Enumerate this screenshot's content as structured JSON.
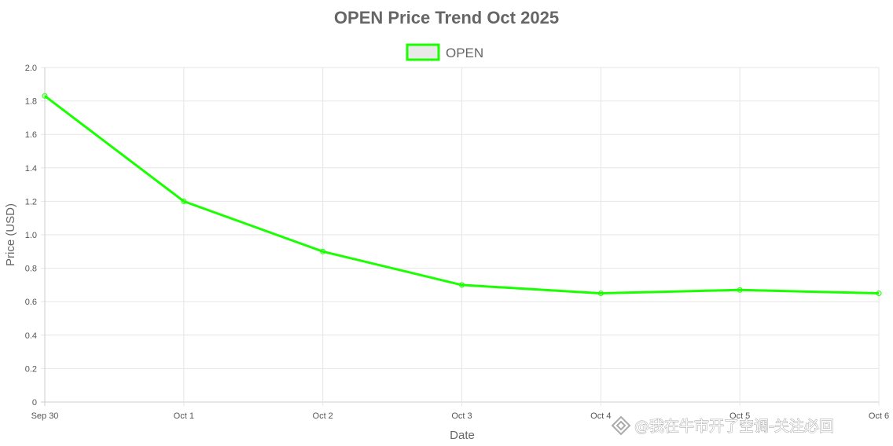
{
  "chart_data": {
    "type": "line",
    "title": "OPEN Price Trend Oct 2025",
    "xlabel": "Date",
    "ylabel": "Price (USD)",
    "categories": [
      "Sep 30",
      "Oct 1",
      "Oct 2",
      "Oct 3",
      "Oct 4",
      "Oct 5",
      "Oct 6"
    ],
    "series": [
      {
        "name": "OPEN",
        "values": [
          1.83,
          1.2,
          0.9,
          0.7,
          0.65,
          0.67,
          0.65
        ],
        "color": "#19ff00"
      }
    ],
    "ylim": [
      0,
      2.0
    ],
    "yticks": [
      "0",
      "0.2",
      "0.4",
      "0.6",
      "0.8",
      "1.0",
      "1.2",
      "1.4",
      "1.6",
      "1.8",
      "2.0"
    ],
    "grid": true,
    "legend": "top-center"
  },
  "watermark": {
    "text": "@我在牛市开了空调-关注必回"
  }
}
